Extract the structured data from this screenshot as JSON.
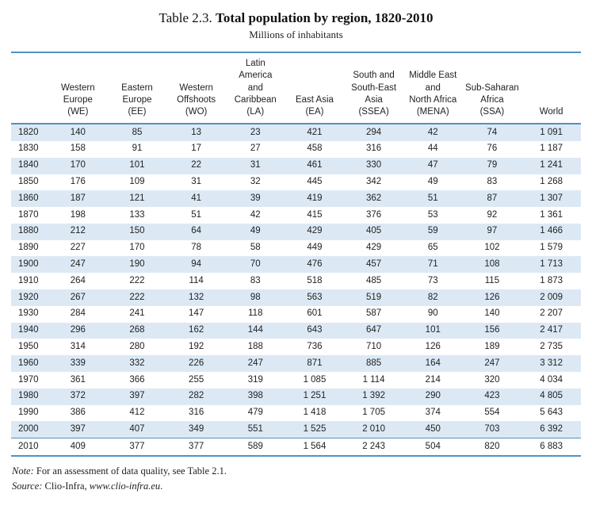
{
  "title": {
    "prefix": "Table 2.3. ",
    "main": "Total population by region, 1820-2010"
  },
  "subtitle": "Millions of inhabitants",
  "colors": {
    "rule_blue": "#4f93c4",
    "stripe_blue": "#dce9f5",
    "text": "#2e2e2e"
  },
  "table": {
    "columns": [
      "",
      "Western\nEurope\n(WE)",
      "Eastern\nEurope\n(EE)",
      "Western\nOffshoots\n(WO)",
      "Latin\nAmerica\nand\nCaribbean\n(LA)",
      "East Asia\n(EA)",
      "South and\nSouth-East\nAsia\n(SSEA)",
      "Middle East\nand\nNorth Africa\n(MENA)",
      "Sub-Saharan\nAfrica\n(SSA)",
      "World"
    ],
    "rows": [
      [
        "1820",
        "140",
        "85",
        "13",
        "23",
        "421",
        "294",
        "42",
        "74",
        "1 091"
      ],
      [
        "1830",
        "158",
        "91",
        "17",
        "27",
        "458",
        "316",
        "44",
        "76",
        "1 187"
      ],
      [
        "1840",
        "170",
        "101",
        "22",
        "31",
        "461",
        "330",
        "47",
        "79",
        "1 241"
      ],
      [
        "1850",
        "176",
        "109",
        "31",
        "32",
        "445",
        "342",
        "49",
        "83",
        "1 268"
      ],
      [
        "1860",
        "187",
        "121",
        "41",
        "39",
        "419",
        "362",
        "51",
        "87",
        "1 307"
      ],
      [
        "1870",
        "198",
        "133",
        "51",
        "42",
        "415",
        "376",
        "53",
        "92",
        "1 361"
      ],
      [
        "1880",
        "212",
        "150",
        "64",
        "49",
        "429",
        "405",
        "59",
        "97",
        "1 466"
      ],
      [
        "1890",
        "227",
        "170",
        "78",
        "58",
        "449",
        "429",
        "65",
        "102",
        "1 579"
      ],
      [
        "1900",
        "247",
        "190",
        "94",
        "70",
        "476",
        "457",
        "71",
        "108",
        "1 713"
      ],
      [
        "1910",
        "264",
        "222",
        "114",
        "83",
        "518",
        "485",
        "73",
        "115",
        "1 873"
      ],
      [
        "1920",
        "267",
        "222",
        "132",
        "98",
        "563",
        "519",
        "82",
        "126",
        "2 009"
      ],
      [
        "1930",
        "284",
        "241",
        "147",
        "118",
        "601",
        "587",
        "90",
        "140",
        "2 207"
      ],
      [
        "1940",
        "296",
        "268",
        "162",
        "144",
        "643",
        "647",
        "101",
        "156",
        "2 417"
      ],
      [
        "1950",
        "314",
        "280",
        "192",
        "188",
        "736",
        "710",
        "126",
        "189",
        "2 735"
      ],
      [
        "1960",
        "339",
        "332",
        "226",
        "247",
        "871",
        "885",
        "164",
        "247",
        "3 312"
      ],
      [
        "1970",
        "361",
        "366",
        "255",
        "319",
        "1 085",
        "1 114",
        "214",
        "320",
        "4 034"
      ],
      [
        "1980",
        "372",
        "397",
        "282",
        "398",
        "1 251",
        "1 392",
        "290",
        "423",
        "4 805"
      ],
      [
        "1990",
        "386",
        "412",
        "316",
        "479",
        "1 418",
        "1 705",
        "374",
        "554",
        "5 643"
      ],
      [
        "2000",
        "397",
        "407",
        "349",
        "551",
        "1 525",
        "2 010",
        "450",
        "703",
        "6 392"
      ],
      [
        "2010",
        "409",
        "377",
        "377",
        "589",
        "1 564",
        "2 243",
        "504",
        "820",
        "6 883"
      ]
    ]
  },
  "notes": {
    "note_label": "Note:",
    "note_text": " For an assessment of data quality, see Table 2.1.",
    "source_label": "Source:",
    "source_text": " Clio-Infra, ",
    "source_url": "www.clio-infra.eu",
    "source_end": "."
  }
}
